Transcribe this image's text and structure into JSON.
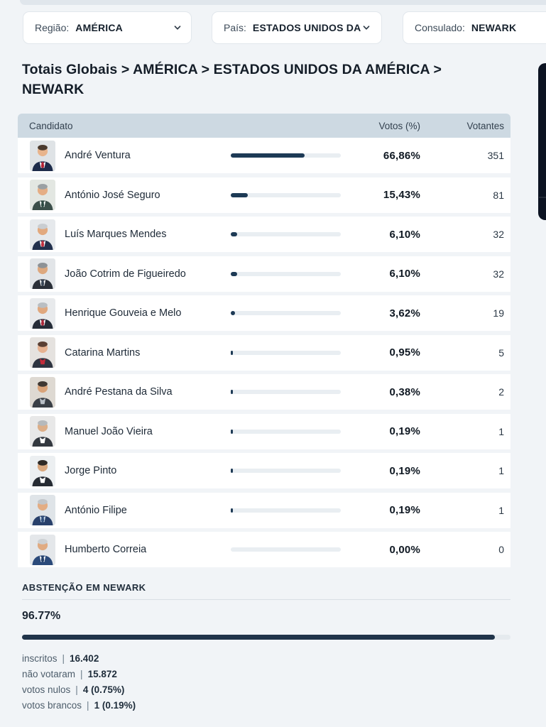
{
  "filters": {
    "region": {
      "label": "Região:",
      "value": "AMÉRICA"
    },
    "country": {
      "label": "País:",
      "value": "ESTADOS UNIDOS DA"
    },
    "consulate": {
      "label": "Consulado:",
      "value": "NEWARK"
    }
  },
  "breadcrumb": "Totais Globais > AMÉRICA > ESTADOS UNIDOS DA AMÉRICA > NEWARK",
  "table": {
    "headers": [
      "Candidato",
      "Votos (%)",
      "Votantes"
    ],
    "rows": [
      {
        "name": "André Ventura",
        "percent": 66.86,
        "percent_label": "66,86%",
        "votes": "351",
        "avatar": {
          "bg": "#dfe3e6",
          "skin": "#e8b48c",
          "hair": "#4a3a2e",
          "suit": "#1d2b4a",
          "shirt": "#ffffff",
          "tie": "#b22234"
        }
      },
      {
        "name": "António José Seguro",
        "percent": 15.43,
        "percent_label": "15,43%",
        "votes": "81",
        "avatar": {
          "bg": "#e3e7e2",
          "skin": "#e5ae85",
          "hair": "#9aa0a3",
          "suit": "#3c4f4a",
          "shirt": "#ffffff",
          "tie": "#2f4a43"
        }
      },
      {
        "name": "Luís Marques Mendes",
        "percent": 6.1,
        "percent_label": "6,10%",
        "votes": "32",
        "avatar": {
          "bg": "#e6e9ec",
          "skin": "#e2a97e",
          "hair": "#c9cdd1",
          "suit": "#22304d",
          "shirt": "#ffffff",
          "tie": "#c03040"
        }
      },
      {
        "name": "João Cotrim de Figueiredo",
        "percent": 6.1,
        "percent_label": "6,10%",
        "votes": "32",
        "avatar": {
          "bg": "#e2e5e8",
          "skin": "#dda87e",
          "hair": "#8d9296",
          "suit": "#2a2f38",
          "shirt": "#ffffff",
          "tie": "#3a4656"
        }
      },
      {
        "name": "Henrique Gouveia e Melo",
        "percent": 3.62,
        "percent_label": "3,62%",
        "votes": "19",
        "avatar": {
          "bg": "#e8eaec",
          "skin": "#e0a87e",
          "hair": "#b9bec2",
          "suit": "#252c38",
          "shirt": "#ffffff",
          "tie": "#a8283a"
        }
      },
      {
        "name": "Catarina Martins",
        "percent": 0.95,
        "percent_label": "0,95%",
        "votes": "5",
        "avatar": {
          "bg": "#e5e2df",
          "skin": "#e6b291",
          "hair": "#5a3f33",
          "suit": "#2e3440",
          "shirt": "#c22b3a",
          "tie": null
        }
      },
      {
        "name": "André Pestana da Silva",
        "percent": 0.38,
        "percent_label": "0,38%",
        "votes": "2",
        "avatar": {
          "bg": "#ded9d2",
          "skin": "#d9a379",
          "hair": "#3f3833",
          "suit": "#3a3f46",
          "shirt": "#b9bfc6",
          "tie": null
        }
      },
      {
        "name": "Manuel João Vieira",
        "percent": 0.19,
        "percent_label": "0,19%",
        "votes": "1",
        "avatar": {
          "bg": "#e8e8e8",
          "skin": "#dcae88",
          "hair": "#b5b9bc",
          "suit": "#33383f",
          "shirt": "#ffffff",
          "tie": null
        }
      },
      {
        "name": "Jorge Pinto",
        "percent": 0.19,
        "percent_label": "0,19%",
        "votes": "1",
        "avatar": {
          "bg": "#eceff1",
          "skin": "#d9a87f",
          "hair": "#2f2a26",
          "suit": "#262b33",
          "shirt": "#ffffff",
          "tie": null
        }
      },
      {
        "name": "António Filipe",
        "percent": 0.19,
        "percent_label": "0,19%",
        "votes": "1",
        "avatar": {
          "bg": "#dfe4e8",
          "skin": "#e3ad84",
          "hair": "#c2c6ca",
          "suit": "#28406b",
          "shirt": "#cfe0ee",
          "tie": "#31507e"
        }
      },
      {
        "name": "Humberto Correia",
        "percent": 0.0,
        "percent_label": "0,00%",
        "votes": "0",
        "avatar": {
          "bg": "#e4e7ea",
          "skin": "#e0ab82",
          "hair": "#cdd1d4",
          "suit": "#2b4a7a",
          "shirt": "#ffffff",
          "tie": "#24406a"
        }
      }
    ]
  },
  "abstention": {
    "title": "ABSTENÇÃO EM NEWARK",
    "percent": 96.77,
    "percent_label": "96.77%",
    "stats": [
      {
        "label": "inscritos",
        "value": "16.402"
      },
      {
        "label": "não votaram",
        "value": "15.872"
      },
      {
        "label": "votos nulos",
        "value": "4 (0.75%)"
      },
      {
        "label": "votos brancos",
        "value": "1 (0.19%)"
      }
    ]
  },
  "colors": {
    "page_bg": "#f1f4f7",
    "bar_fill": "#1d3a55",
    "bar_track": "#e9eef2",
    "header_band": "#cdd9e2",
    "abstention_fill": "#20344a",
    "side_widget": "#0c1322"
  }
}
